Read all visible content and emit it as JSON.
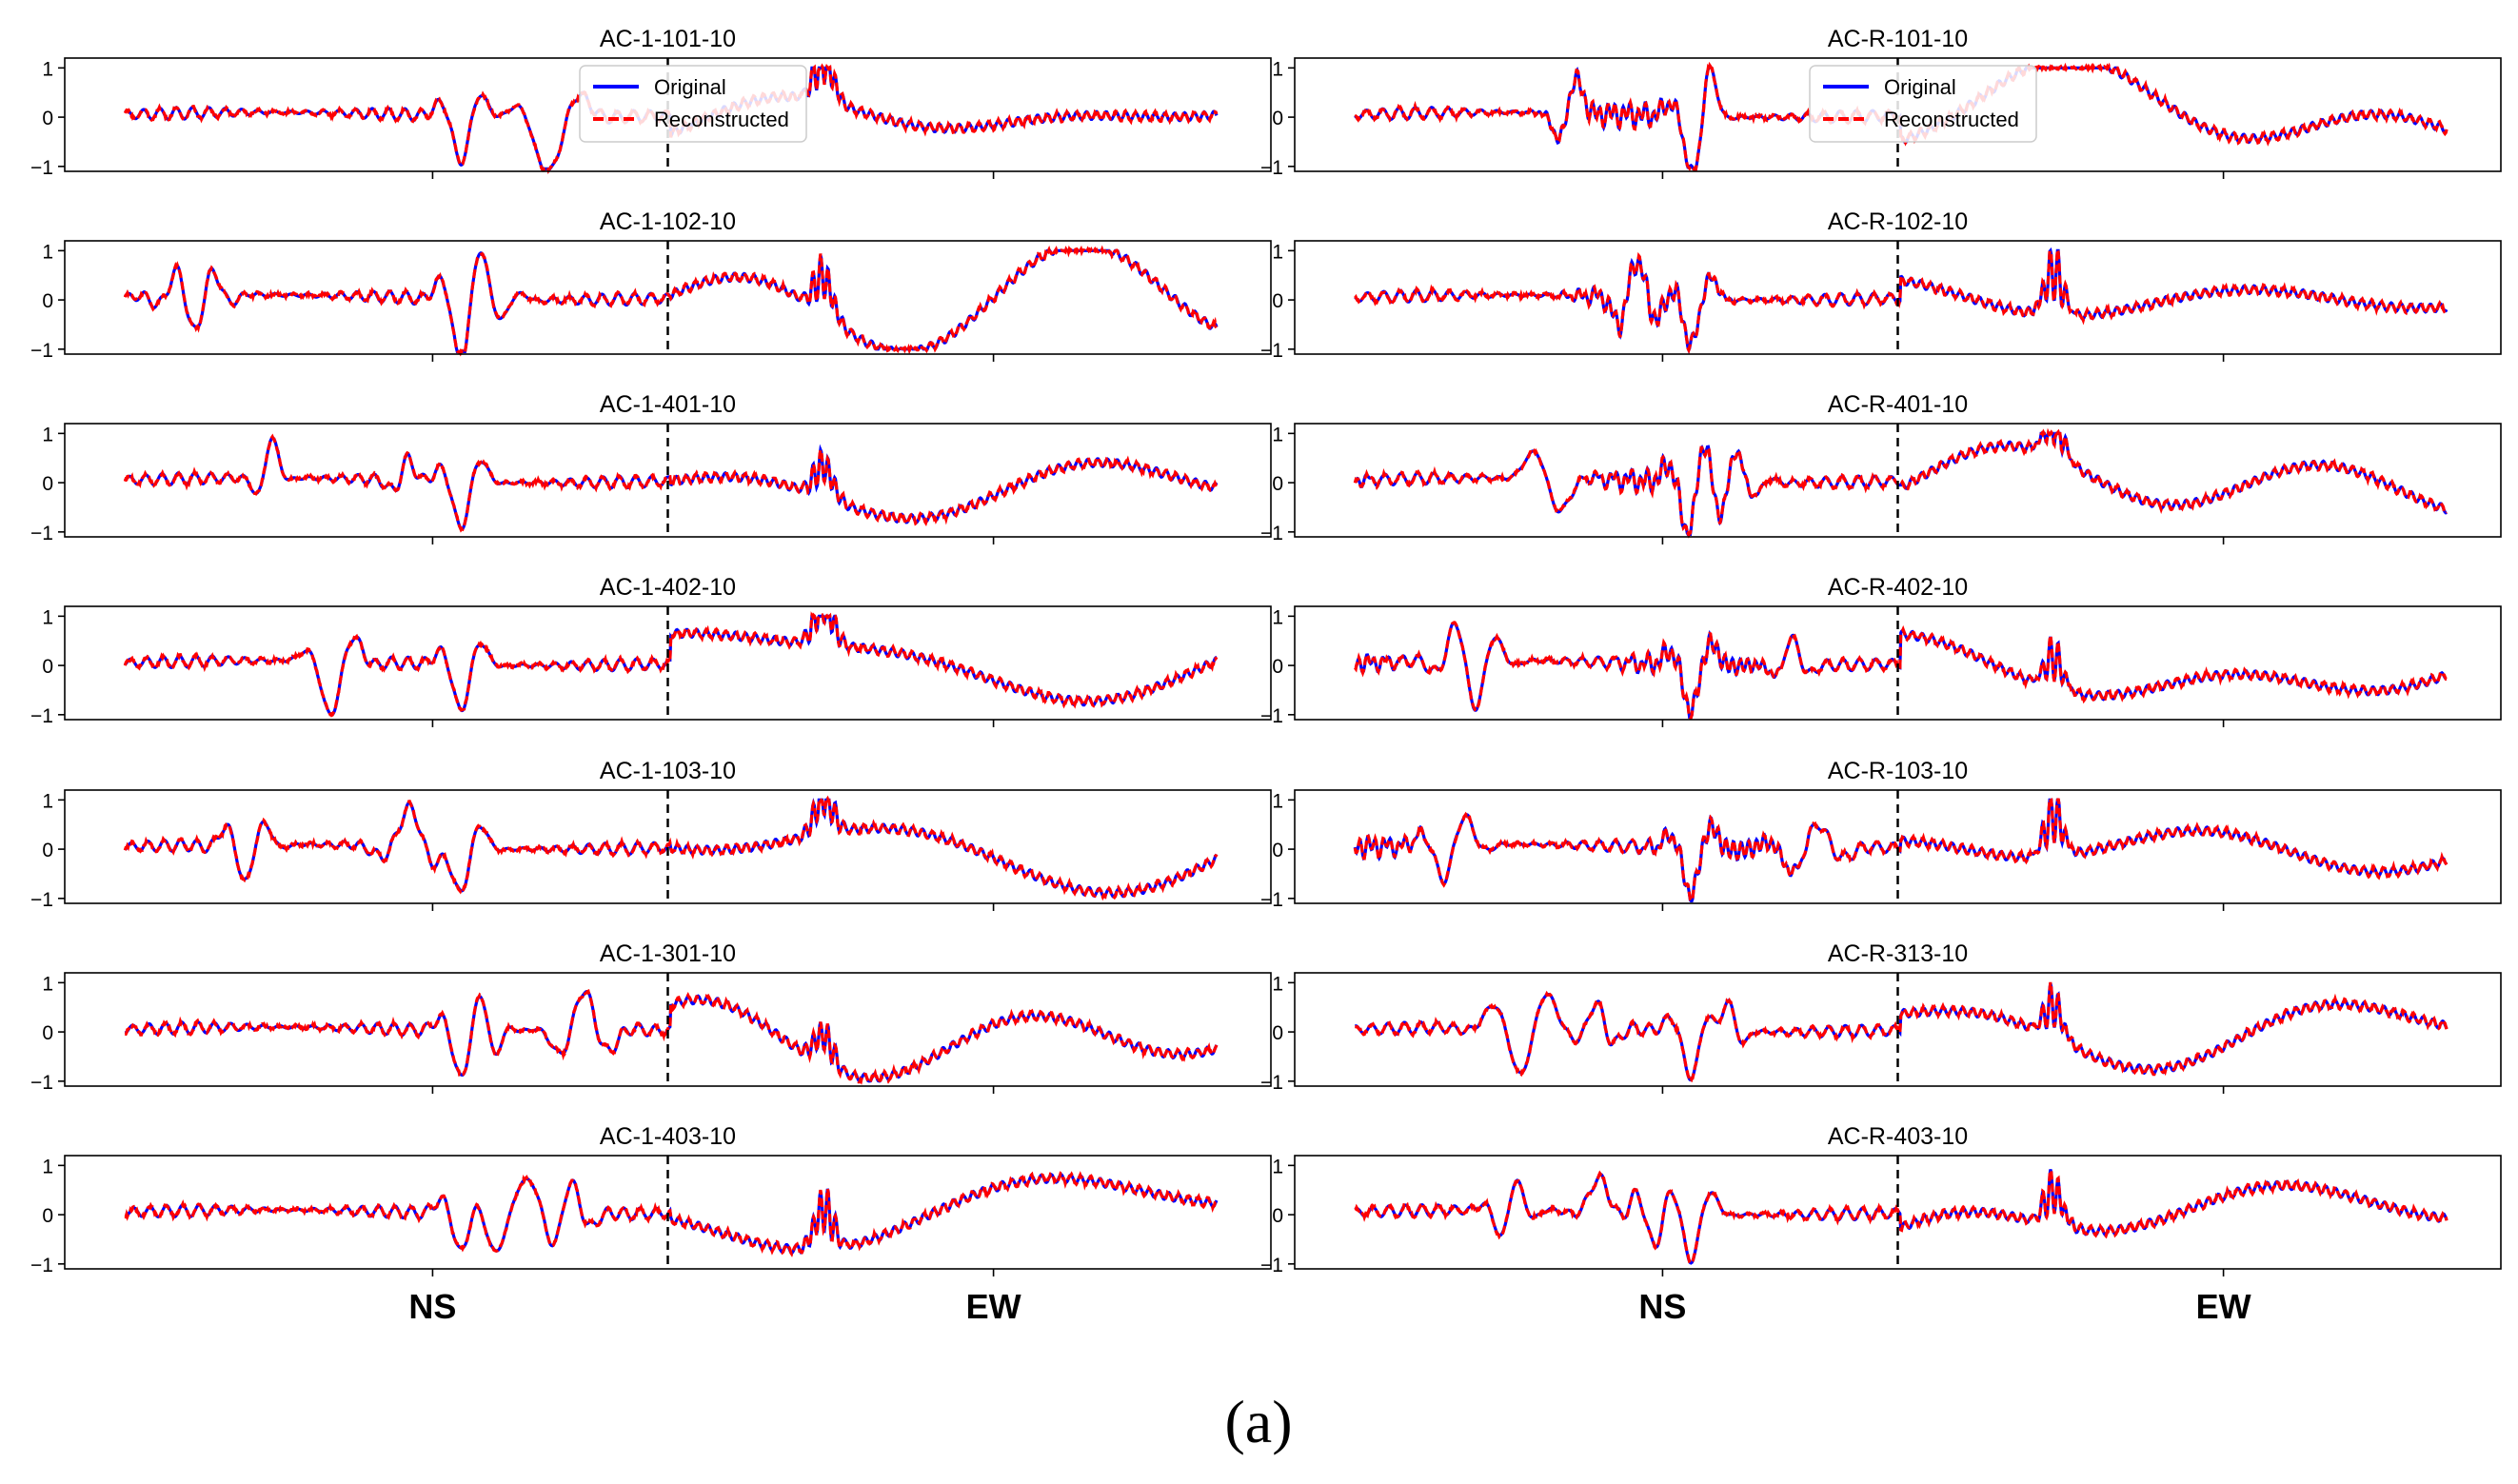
{
  "figure": {
    "caption": "(a)"
  },
  "axis_ticks": {
    "y": [
      "1",
      "0",
      "−1"
    ]
  },
  "chart_data": [
    {
      "type": "line",
      "panels": [
        "AC-1-101-10",
        "AC-1-102-10",
        "AC-1-401-10",
        "AC-1-402-10",
        "AC-1-103-10",
        "AC-1-301-10",
        "AC-1-403-10"
      ],
      "series": [
        {
          "name": "Original",
          "color": "#0000ff",
          "style": "solid"
        },
        {
          "name": "Reconstructed",
          "color": "#ff0000",
          "style": "dashed"
        }
      ],
      "ylim": [
        -1.1,
        1.2
      ],
      "yticks": [
        -1,
        0,
        1
      ],
      "segments": [
        "NS",
        "EW"
      ],
      "segment_divider": "dashed-vertical",
      "legend": {
        "panel": "AC-1-101-10",
        "placement": "top-center"
      }
    },
    {
      "type": "line",
      "panels": [
        "AC-R-101-10",
        "AC-R-102-10",
        "AC-R-401-10",
        "AC-R-402-10",
        "AC-R-103-10",
        "AC-R-313-10",
        "AC-R-403-10"
      ],
      "series": [
        {
          "name": "Original",
          "color": "#0000ff",
          "style": "solid"
        },
        {
          "name": "Reconstructed",
          "color": "#ff0000",
          "style": "dashed"
        }
      ],
      "ylim": [
        -1.1,
        1.2
      ],
      "yticks": [
        -1,
        0,
        1
      ],
      "segments": [
        "NS",
        "EW"
      ],
      "segment_divider": "dashed-vertical",
      "legend": {
        "panel": "AC-R-101-10",
        "placement": "top-center"
      }
    }
  ]
}
